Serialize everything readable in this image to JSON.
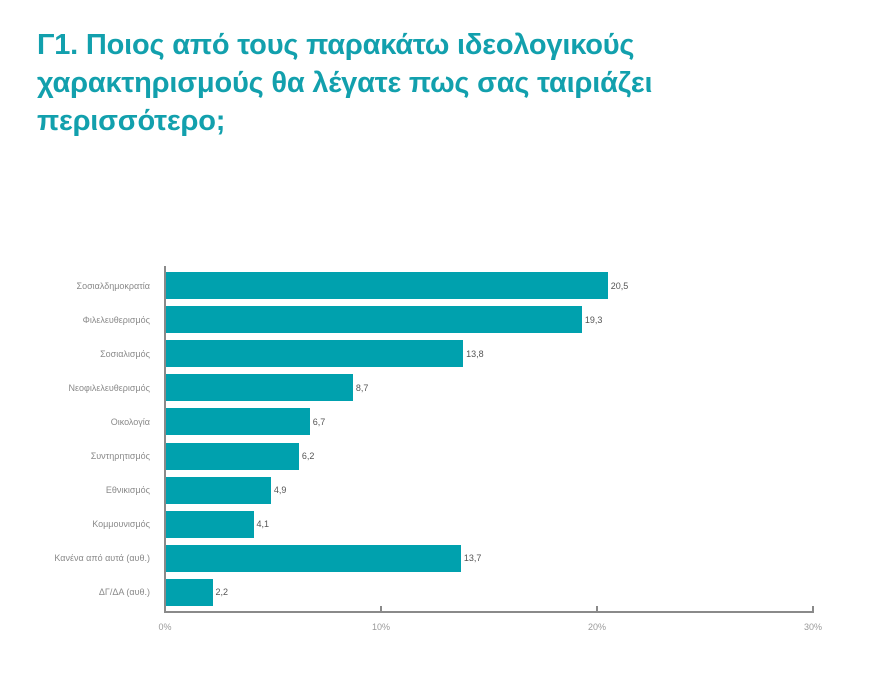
{
  "header": {
    "title": "Γ1. Ποιος από τους παρακάτω ιδεολογικούς χαρακτηρισμούς θα λέγατε πως σας ταιριάζει περισσότερο;"
  },
  "colors": {
    "title": "#12a0ad",
    "bar": "#00a1ae",
    "axis": "#8a8a8a"
  },
  "chart_data": {
    "type": "bar",
    "orientation": "horizontal",
    "title": "Γ1. Ποιος από τους παρακάτω ιδεολογικούς χαρακτηρισμούς θα λέγατε πως σας ταιριάζει περισσότερο;",
    "xlabel": "",
    "ylabel": "",
    "categories": [
      "Σοσιαλδημοκρατία",
      "Φιλελευθερισμός",
      "Σοσιαλισμός",
      "Νεοφιλελευθερισμός",
      "Οικολογία",
      "Συντηρητισμός",
      "Εθνικισμός",
      "Κομμουνισμός",
      "Κανένα από αυτά (αυθ.)",
      "ΔΓ/ΔΑ (αυθ.)"
    ],
    "values": [
      20.5,
      19.3,
      13.8,
      8.7,
      6.7,
      6.2,
      4.9,
      4.1,
      13.7,
      2.2
    ],
    "value_labels": [
      "20,5",
      "19,3",
      "13,8",
      "8,7",
      "6,7",
      "6,2",
      "4,9",
      "4,1",
      "13,7",
      "2,2"
    ],
    "xlim": [
      0,
      30
    ],
    "xticks": [
      0,
      10,
      20,
      30
    ],
    "xtick_labels": [
      "0%",
      "10%",
      "20%",
      "30%"
    ],
    "grid": false,
    "legend": null
  }
}
